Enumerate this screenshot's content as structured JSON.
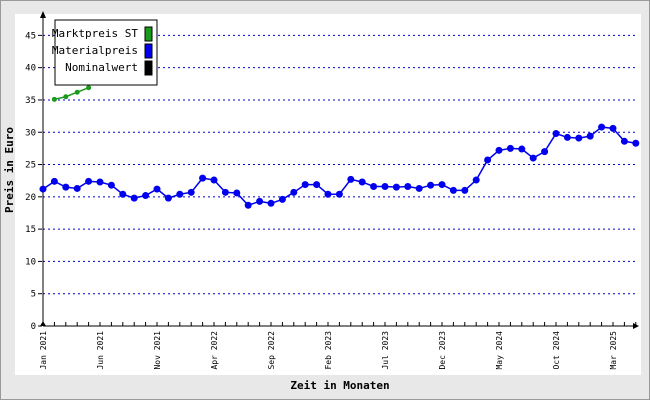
{
  "chart_data": {
    "type": "line",
    "x_label": "Zeit in Monaten",
    "y_label": "Preis in Euro",
    "categories": [
      "Jan 2021",
      null,
      null,
      null,
      null,
      "Jun 2021",
      null,
      null,
      null,
      null,
      "Nov 2021",
      null,
      null,
      null,
      null,
      "Apr 2022",
      null,
      null,
      null,
      null,
      "Sep 2022",
      null,
      null,
      null,
      null,
      "Feb 2023",
      null,
      null,
      null,
      null,
      "Jul 2023",
      null,
      null,
      null,
      null,
      "Dec 2023",
      null,
      null,
      null,
      null,
      "May 2024",
      null,
      null,
      null,
      null,
      "Oct 2024",
      null,
      null,
      null,
      null,
      "Mar 2025",
      null,
      null
    ],
    "series": [
      {
        "name": "Marktpreis ST",
        "color": "#1a9a1a",
        "values": [
          null,
          35.1,
          35.5,
          36.2,
          36.9,
          null,
          null,
          null,
          null,
          null,
          null,
          null,
          null,
          null,
          null,
          null,
          null,
          null,
          null,
          null,
          null,
          null,
          null,
          null,
          null,
          null,
          null,
          null,
          null,
          null,
          null,
          null,
          null,
          null,
          null,
          null,
          null,
          null,
          null,
          null,
          null,
          null,
          null,
          null,
          null,
          null,
          null,
          null,
          null,
          null,
          null,
          null,
          null
        ]
      },
      {
        "name": "Materialpreis",
        "color": "#0000ee",
        "values": [
          21.2,
          22.4,
          21.5,
          21.3,
          22.4,
          22.3,
          21.8,
          20.4,
          19.8,
          20.2,
          21.2,
          19.8,
          20.4,
          20.7,
          22.9,
          22.6,
          20.7,
          20.6,
          18.7,
          19.3,
          19.0,
          19.6,
          20.7,
          21.9,
          21.9,
          20.4,
          20.4,
          22.7,
          22.3,
          21.6,
          21.6,
          21.5,
          21.6,
          21.3,
          21.8,
          21.9,
          21.0,
          21.0,
          22.6,
          25.7,
          27.2,
          27.5,
          27.4,
          26.0,
          27.0,
          29.8,
          29.2,
          29.1,
          29.4,
          30.8,
          30.6,
          28.6,
          28.3
        ]
      },
      {
        "name": "Nominalwert",
        "color": "#000000",
        "values": [
          null,
          null,
          null,
          null,
          null,
          null,
          null,
          null,
          null,
          null,
          null,
          null,
          null,
          null,
          null,
          null,
          null,
          null,
          null,
          null,
          null,
          null,
          null,
          null,
          null,
          null,
          null,
          null,
          null,
          null,
          null,
          null,
          null,
          null,
          null,
          null,
          null,
          null,
          null,
          null,
          null,
          null,
          null,
          null,
          null,
          null,
          null,
          null,
          null,
          null,
          null,
          null,
          null
        ]
      }
    ],
    "ylim": [
      0,
      48
    ],
    "yticks": [
      0,
      5,
      10,
      15,
      20,
      25,
      30,
      35,
      40,
      45
    ],
    "grid": true
  }
}
